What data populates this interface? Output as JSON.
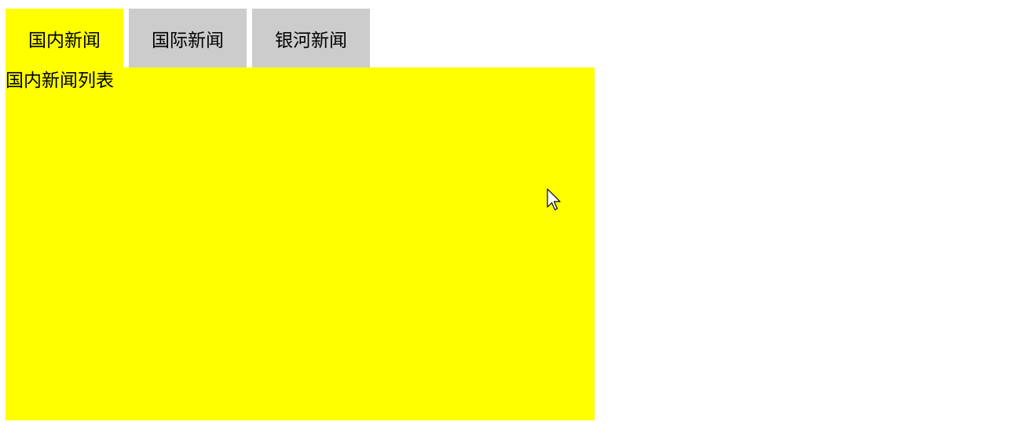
{
  "tabs": [
    {
      "label": "国内新闻",
      "active": true
    },
    {
      "label": "国际新闻",
      "active": false
    },
    {
      "label": "银河新闻",
      "active": false
    }
  ],
  "panel": {
    "text": "国内新闻列表"
  },
  "colors": {
    "active_tab_bg": "#ffff00",
    "inactive_tab_bg": "#cccccc",
    "panel_bg": "#ffff00",
    "page_bg": "#ffffff",
    "text": "#000000"
  },
  "icons": {
    "cursor": "mouse-pointer-icon"
  }
}
